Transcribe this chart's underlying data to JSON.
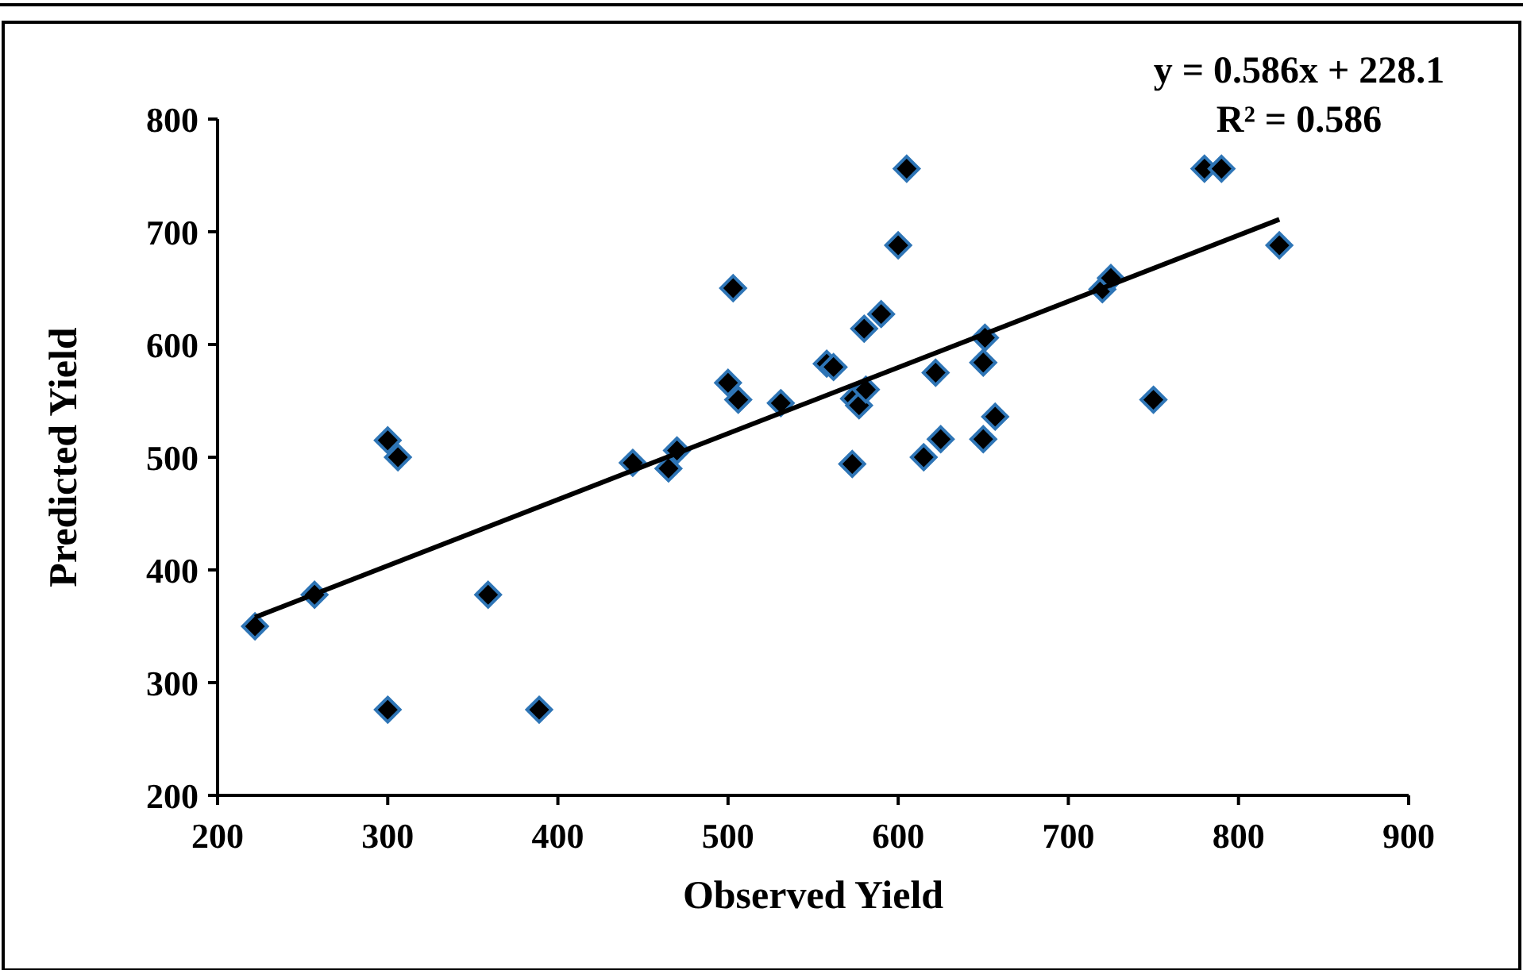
{
  "chart_data": {
    "type": "scatter",
    "xlabel": "Observed Yield",
    "ylabel": "Predicted Yield",
    "xlim": [
      200,
      900
    ],
    "xticks": [
      200,
      300,
      400,
      500,
      600,
      700,
      800,
      900
    ],
    "ylim": [
      200,
      800
    ],
    "yticks": [
      200,
      300,
      400,
      500,
      600,
      700,
      800
    ],
    "grid": false,
    "annotations": [
      "y = 0.586x + 228.1",
      "R² = 0.586"
    ],
    "series": [
      {
        "marker": "diamond",
        "color": "#000000",
        "x": [
          222,
          257,
          300,
          306,
          300,
          359,
          389,
          444,
          465,
          470,
          500,
          503,
          506,
          531,
          558,
          562,
          573,
          574,
          577,
          581,
          580,
          590,
          600,
          605,
          615,
          622,
          625,
          650,
          650,
          651,
          657,
          720,
          725,
          750,
          780,
          790,
          824
        ],
        "values": [
          350,
          378,
          515,
          500,
          276,
          378,
          276,
          495,
          490,
          506,
          566,
          650,
          551,
          548,
          583,
          580,
          494,
          552,
          546,
          560,
          614,
          627,
          688,
          756,
          500,
          575,
          516,
          516,
          584,
          606,
          536,
          649,
          659,
          551,
          756,
          756,
          688
        ]
      },
      {
        "type": "line",
        "marker": "none",
        "color": "#000000",
        "x": [
          222,
          824
        ],
        "values": [
          358,
          711
        ]
      }
    ]
  }
}
